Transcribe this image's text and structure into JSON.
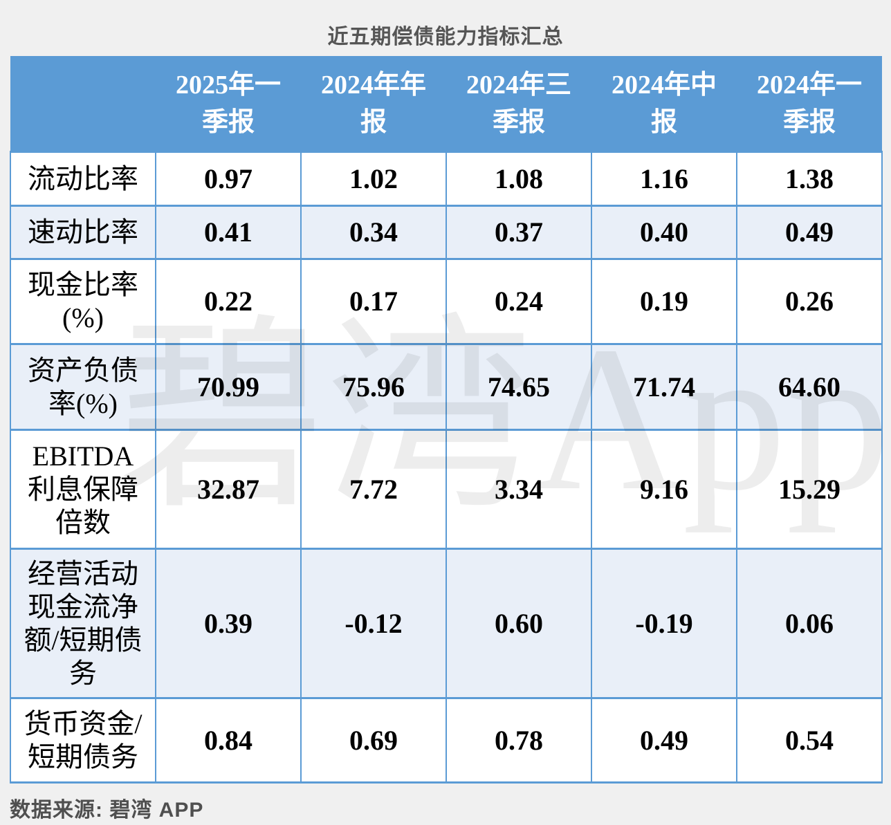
{
  "title": "近五期偿债能力指标汇总",
  "footer": {
    "source": "数据来源: 碧湾 APP"
  },
  "watermark": "碧湾App",
  "colors": {
    "header_bg": "#5b9bd5",
    "border": "#5b9bd5",
    "row_alt_bg": "#e9eff8",
    "page_bg": "#f0f0f0",
    "header_text": "#ffffff",
    "body_text": "#000000",
    "title_text": "#555555"
  },
  "table": {
    "corner": "",
    "columns": [
      "2025年一\n季报",
      "2024年年\n报",
      "2024年三\n季报",
      "2024年中\n报",
      "2024年一\n季报"
    ],
    "rows": [
      {
        "label": "流动比率",
        "values": [
          "0.97",
          "1.02",
          "1.08",
          "1.16",
          "1.38"
        ]
      },
      {
        "label": "速动比率",
        "values": [
          "0.41",
          "0.34",
          "0.37",
          "0.40",
          "0.49"
        ]
      },
      {
        "label": "现金比率\n(%)",
        "values": [
          "0.22",
          "0.17",
          "0.24",
          "0.19",
          "0.26"
        ]
      },
      {
        "label": "资产负债\n率(%)",
        "values": [
          "70.99",
          "75.96",
          "74.65",
          "71.74",
          "64.60"
        ]
      },
      {
        "label": "EBITDA\n利息保障\n倍数",
        "values": [
          "32.87",
          "7.72",
          "3.34",
          "9.16",
          "15.29"
        ]
      },
      {
        "label": "经营活动\n现金流净\n额/短期债\n务",
        "values": [
          "0.39",
          "-0.12",
          "0.60",
          "-0.19",
          "0.06"
        ]
      },
      {
        "label": "货币资金/\n短期债务",
        "values": [
          "0.84",
          "0.69",
          "0.78",
          "0.49",
          "0.54"
        ]
      }
    ]
  },
  "chart_data": {
    "type": "table",
    "title": "近五期偿债能力指标汇总",
    "columns": [
      "2025年一季报",
      "2024年年报",
      "2024年三季报",
      "2024年中报",
      "2024年一季报"
    ],
    "rows": [
      {
        "label": "流动比率",
        "values": [
          0.97,
          1.02,
          1.08,
          1.16,
          1.38
        ]
      },
      {
        "label": "速动比率",
        "values": [
          0.41,
          0.34,
          0.37,
          0.4,
          0.49
        ]
      },
      {
        "label": "现金比率(%)",
        "values": [
          0.22,
          0.17,
          0.24,
          0.19,
          0.26
        ]
      },
      {
        "label": "资产负债率(%)",
        "values": [
          70.99,
          75.96,
          74.65,
          71.74,
          64.6
        ]
      },
      {
        "label": "EBITDA利息保障倍数",
        "values": [
          32.87,
          7.72,
          3.34,
          9.16,
          15.29
        ]
      },
      {
        "label": "经营活动现金流净额/短期债务",
        "values": [
          0.39,
          -0.12,
          0.6,
          -0.19,
          0.06
        ]
      },
      {
        "label": "货币资金/短期债务",
        "values": [
          0.84,
          0.69,
          0.78,
          0.49,
          0.54
        ]
      }
    ],
    "source": "数据来源: 碧湾 APP"
  }
}
